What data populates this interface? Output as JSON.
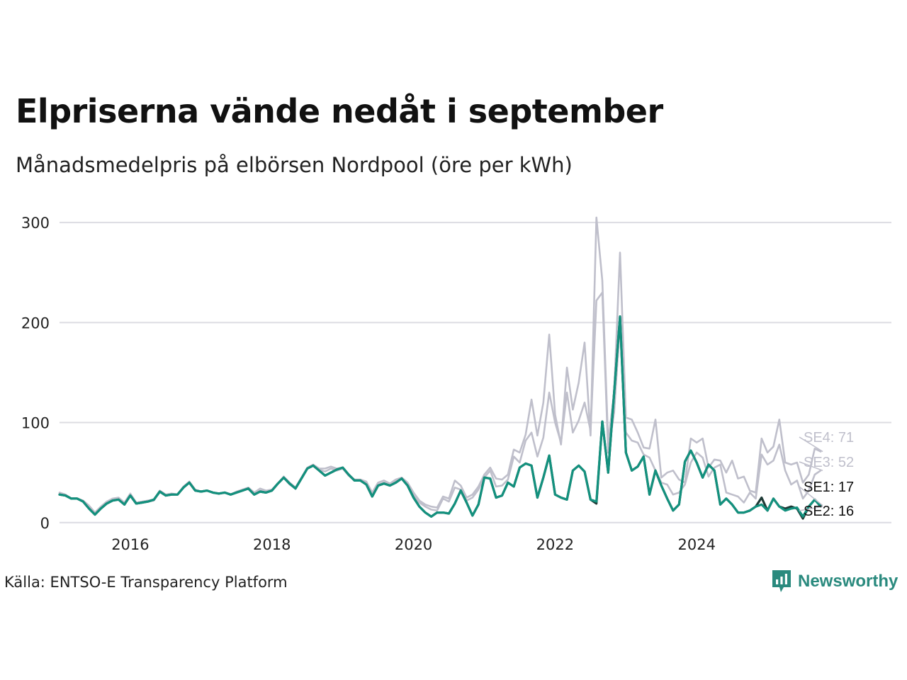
{
  "title": "Elpriserna vände nedåt i september",
  "subtitle": "Månadsmedelpris på elbörsen Nordpool (öre per kWh)",
  "source": "Källa: ENTSO-E Transparency Platform",
  "logo": {
    "text": "Newsworthy",
    "icon": "bar-chart-speech-bubble-icon"
  },
  "colors": {
    "SE1": "#1f3a36",
    "SE2": "#13917e",
    "SE3": "#bfbfcb",
    "SE4": "#bfbfcb",
    "grid": "#dcdce2",
    "brand": "#2a8a7e"
  },
  "chart_data": {
    "type": "line",
    "title": "Elpriserna vände nedåt i september",
    "ylabel": "öre per kWh",
    "xlabel": "",
    "x_start": "2015-01",
    "xlim": [
      2015.0,
      2026.75
    ],
    "ylim": [
      -20,
      310
    ],
    "yticks": [
      0,
      100,
      200,
      300
    ],
    "yticklabels": [
      "0",
      "100",
      "200",
      "300"
    ],
    "xticks": [
      2016,
      2018,
      2020,
      2022,
      2024
    ],
    "xticklabels": [
      "2016",
      "2018",
      "2020",
      "2022",
      "2024"
    ],
    "grid": "horizontal",
    "end_labels": [
      {
        "series": "SE4",
        "text": "SE4: 71"
      },
      {
        "series": "SE3",
        "text": "SE3: 52"
      },
      {
        "series": "SE1",
        "text": "SE1: 17"
      },
      {
        "series": "SE2",
        "text": "SE2: 16"
      }
    ],
    "series": [
      {
        "name": "SE4",
        "values": [
          30,
          28,
          24,
          24,
          22,
          17,
          10,
          16,
          21,
          24,
          25,
          20,
          29,
          20,
          21,
          22,
          23,
          32,
          28,
          29,
          28,
          36,
          41,
          33,
          31,
          32,
          30,
          29,
          30,
          28,
          31,
          33,
          35,
          30,
          34,
          32,
          33,
          39,
          46,
          40,
          35,
          45,
          55,
          58,
          54,
          54,
          56,
          54,
          55,
          48,
          43,
          43,
          41,
          30,
          40,
          42,
          39,
          43,
          45,
          40,
          30,
          22,
          18,
          16,
          15,
          26,
          24,
          42,
          37,
          25,
          28,
          36,
          48,
          55,
          44,
          43,
          48,
          73,
          70,
          88,
          123,
          87,
          120,
          188,
          108,
          78,
          155,
          113,
          140,
          180,
          87,
          305,
          242,
          80,
          130,
          270,
          105,
          103,
          90,
          75,
          74,
          103,
          45,
          50,
          52,
          43,
          40,
          84,
          80,
          84,
          55,
          63,
          62,
          50,
          62,
          44,
          46,
          32,
          30,
          84,
          70,
          76,
          103,
          60,
          58,
          60,
          40,
          48,
          74,
          71
        ]
      },
      {
        "name": "SE3",
        "values": [
          29,
          28,
          24,
          24,
          21,
          16,
          10,
          15,
          20,
          23,
          24,
          19,
          28,
          20,
          20,
          21,
          22,
          31,
          27,
          28,
          28,
          35,
          40,
          32,
          31,
          32,
          30,
          29,
          30,
          28,
          30,
          33,
          34,
          29,
          32,
          31,
          32,
          39,
          45,
          38,
          34,
          44,
          54,
          57,
          53,
          51,
          54,
          52,
          54,
          47,
          42,
          42,
          39,
          28,
          38,
          40,
          38,
          42,
          44,
          39,
          28,
          20,
          16,
          13,
          12,
          24,
          21,
          35,
          33,
          22,
          25,
          33,
          45,
          52,
          36,
          37,
          43,
          66,
          60,
          82,
          90,
          66,
          85,
          130,
          100,
          80,
          130,
          90,
          102,
          120,
          92,
          222,
          230,
          70,
          110,
          200,
          90,
          82,
          80,
          68,
          65,
          52,
          40,
          38,
          28,
          30,
          38,
          60,
          70,
          65,
          46,
          55,
          58,
          30,
          28,
          26,
          20,
          30,
          24,
          68,
          58,
          62,
          78,
          52,
          38,
          42,
          24,
          32,
          48,
          52
        ]
      },
      {
        "name": "SE1",
        "values": [
          28,
          27,
          24,
          24,
          21,
          14,
          8,
          14,
          19,
          22,
          23,
          18,
          27,
          19,
          20,
          21,
          23,
          31,
          27,
          28,
          28,
          35,
          40,
          32,
          31,
          32,
          30,
          29,
          30,
          28,
          30,
          32,
          34,
          28,
          31,
          30,
          32,
          39,
          45,
          39,
          34,
          44,
          54,
          57,
          52,
          47,
          50,
          53,
          55,
          48,
          42,
          42,
          38,
          26,
          37,
          39,
          37,
          40,
          44,
          37,
          25,
          16,
          10,
          6,
          10,
          10,
          9,
          19,
          32,
          20,
          7,
          18,
          45,
          44,
          25,
          27,
          40,
          36,
          55,
          59,
          57,
          25,
          45,
          67,
          28,
          25,
          23,
          52,
          57,
          51,
          23,
          19,
          101,
          50,
          130,
          206,
          70,
          52,
          56,
          66,
          28,
          52,
          37,
          24,
          12,
          18,
          61,
          72,
          60,
          45,
          58,
          52,
          18,
          24,
          18,
          10,
          10,
          12,
          16,
          25,
          12,
          24,
          16,
          14,
          16,
          14,
          4,
          16,
          23,
          17
        ]
      },
      {
        "name": "SE2",
        "values": [
          28,
          27,
          24,
          24,
          21,
          14,
          8,
          14,
          19,
          22,
          23,
          18,
          27,
          19,
          20,
          21,
          23,
          31,
          27,
          28,
          28,
          35,
          40,
          32,
          31,
          32,
          30,
          29,
          30,
          28,
          30,
          32,
          34,
          28,
          31,
          30,
          32,
          39,
          45,
          39,
          34,
          44,
          54,
          57,
          52,
          47,
          50,
          53,
          55,
          48,
          42,
          42,
          38,
          26,
          37,
          39,
          37,
          40,
          44,
          37,
          25,
          16,
          10,
          6,
          10,
          10,
          9,
          19,
          32,
          20,
          7,
          18,
          45,
          44,
          25,
          27,
          40,
          36,
          55,
          59,
          57,
          25,
          45,
          67,
          28,
          25,
          23,
          52,
          57,
          51,
          23,
          21,
          101,
          50,
          130,
          206,
          70,
          52,
          56,
          66,
          28,
          52,
          37,
          24,
          12,
          18,
          61,
          72,
          60,
          45,
          58,
          52,
          18,
          24,
          18,
          10,
          10,
          12,
          16,
          18,
          12,
          24,
          16,
          12,
          14,
          15,
          6,
          16,
          23,
          16
        ]
      }
    ]
  }
}
